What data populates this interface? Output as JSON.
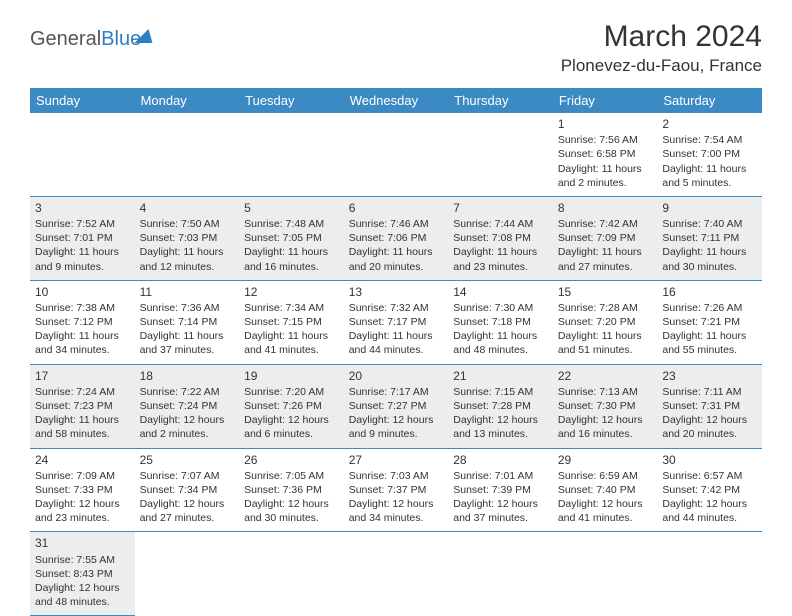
{
  "header": {
    "logo_part1": "General",
    "logo_part2": "Blue",
    "month_title": "March 2024",
    "location": "Plonevez-du-Faou, France"
  },
  "colors": {
    "header_bg": "#3b8ac4",
    "row_border": "#3b8ac4",
    "shade_bg": "#eceded",
    "text": "#333333"
  },
  "day_headers": [
    "Sunday",
    "Monday",
    "Tuesday",
    "Wednesday",
    "Thursday",
    "Friday",
    "Saturday"
  ],
  "weeks": [
    [
      null,
      null,
      null,
      null,
      null,
      {
        "n": "1",
        "sr": "7:56 AM",
        "ss": "6:58 PM",
        "d1": "11 hours",
        "d2": "and 2 minutes."
      },
      {
        "n": "2",
        "sr": "7:54 AM",
        "ss": "7:00 PM",
        "d1": "11 hours",
        "d2": "and 5 minutes."
      }
    ],
    [
      {
        "n": "3",
        "sr": "7:52 AM",
        "ss": "7:01 PM",
        "d1": "11 hours",
        "d2": "and 9 minutes."
      },
      {
        "n": "4",
        "sr": "7:50 AM",
        "ss": "7:03 PM",
        "d1": "11 hours",
        "d2": "and 12 minutes."
      },
      {
        "n": "5",
        "sr": "7:48 AM",
        "ss": "7:05 PM",
        "d1": "11 hours",
        "d2": "and 16 minutes."
      },
      {
        "n": "6",
        "sr": "7:46 AM",
        "ss": "7:06 PM",
        "d1": "11 hours",
        "d2": "and 20 minutes."
      },
      {
        "n": "7",
        "sr": "7:44 AM",
        "ss": "7:08 PM",
        "d1": "11 hours",
        "d2": "and 23 minutes."
      },
      {
        "n": "8",
        "sr": "7:42 AM",
        "ss": "7:09 PM",
        "d1": "11 hours",
        "d2": "and 27 minutes."
      },
      {
        "n": "9",
        "sr": "7:40 AM",
        "ss": "7:11 PM",
        "d1": "11 hours",
        "d2": "and 30 minutes."
      }
    ],
    [
      {
        "n": "10",
        "sr": "7:38 AM",
        "ss": "7:12 PM",
        "d1": "11 hours",
        "d2": "and 34 minutes."
      },
      {
        "n": "11",
        "sr": "7:36 AM",
        "ss": "7:14 PM",
        "d1": "11 hours",
        "d2": "and 37 minutes."
      },
      {
        "n": "12",
        "sr": "7:34 AM",
        "ss": "7:15 PM",
        "d1": "11 hours",
        "d2": "and 41 minutes."
      },
      {
        "n": "13",
        "sr": "7:32 AM",
        "ss": "7:17 PM",
        "d1": "11 hours",
        "d2": "and 44 minutes."
      },
      {
        "n": "14",
        "sr": "7:30 AM",
        "ss": "7:18 PM",
        "d1": "11 hours",
        "d2": "and 48 minutes."
      },
      {
        "n": "15",
        "sr": "7:28 AM",
        "ss": "7:20 PM",
        "d1": "11 hours",
        "d2": "and 51 minutes."
      },
      {
        "n": "16",
        "sr": "7:26 AM",
        "ss": "7:21 PM",
        "d1": "11 hours",
        "d2": "and 55 minutes."
      }
    ],
    [
      {
        "n": "17",
        "sr": "7:24 AM",
        "ss": "7:23 PM",
        "d1": "11 hours",
        "d2": "and 58 minutes."
      },
      {
        "n": "18",
        "sr": "7:22 AM",
        "ss": "7:24 PM",
        "d1": "12 hours",
        "d2": "and 2 minutes."
      },
      {
        "n": "19",
        "sr": "7:20 AM",
        "ss": "7:26 PM",
        "d1": "12 hours",
        "d2": "and 6 minutes."
      },
      {
        "n": "20",
        "sr": "7:17 AM",
        "ss": "7:27 PM",
        "d1": "12 hours",
        "d2": "and 9 minutes."
      },
      {
        "n": "21",
        "sr": "7:15 AM",
        "ss": "7:28 PM",
        "d1": "12 hours",
        "d2": "and 13 minutes."
      },
      {
        "n": "22",
        "sr": "7:13 AM",
        "ss": "7:30 PM",
        "d1": "12 hours",
        "d2": "and 16 minutes."
      },
      {
        "n": "23",
        "sr": "7:11 AM",
        "ss": "7:31 PM",
        "d1": "12 hours",
        "d2": "and 20 minutes."
      }
    ],
    [
      {
        "n": "24",
        "sr": "7:09 AM",
        "ss": "7:33 PM",
        "d1": "12 hours",
        "d2": "and 23 minutes."
      },
      {
        "n": "25",
        "sr": "7:07 AM",
        "ss": "7:34 PM",
        "d1": "12 hours",
        "d2": "and 27 minutes."
      },
      {
        "n": "26",
        "sr": "7:05 AM",
        "ss": "7:36 PM",
        "d1": "12 hours",
        "d2": "and 30 minutes."
      },
      {
        "n": "27",
        "sr": "7:03 AM",
        "ss": "7:37 PM",
        "d1": "12 hours",
        "d2": "and 34 minutes."
      },
      {
        "n": "28",
        "sr": "7:01 AM",
        "ss": "7:39 PM",
        "d1": "12 hours",
        "d2": "and 37 minutes."
      },
      {
        "n": "29",
        "sr": "6:59 AM",
        "ss": "7:40 PM",
        "d1": "12 hours",
        "d2": "and 41 minutes."
      },
      {
        "n": "30",
        "sr": "6:57 AM",
        "ss": "7:42 PM",
        "d1": "12 hours",
        "d2": "and 44 minutes."
      }
    ],
    [
      {
        "n": "31",
        "sr": "7:55 AM",
        "ss": "8:43 PM",
        "d1": "12 hours",
        "d2": "and 48 minutes."
      },
      null,
      null,
      null,
      null,
      null,
      null
    ]
  ],
  "labels": {
    "sunrise_prefix": "Sunrise: ",
    "sunset_prefix": "Sunset: ",
    "daylight_prefix": "Daylight: "
  }
}
